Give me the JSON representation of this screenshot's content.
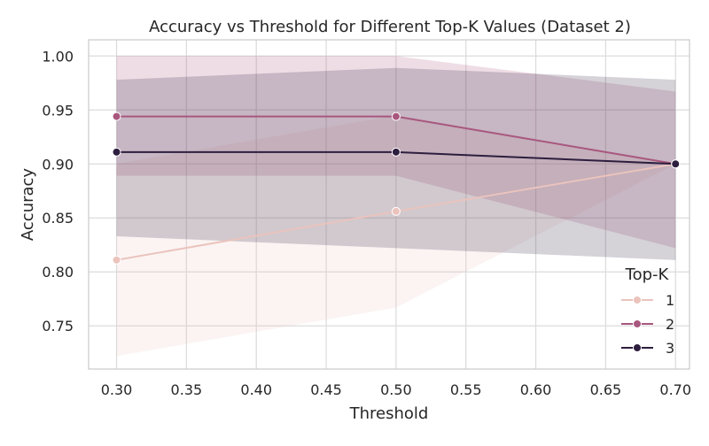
{
  "chart_data": {
    "type": "line",
    "title": "Accuracy vs Threshold for Different Top-K Values (Dataset 2)",
    "xlabel": "Threshold",
    "ylabel": "Accuracy",
    "xlim": [
      0.28,
      0.71
    ],
    "ylim": [
      0.71,
      1.015
    ],
    "x_ticks": [
      0.3,
      0.35,
      0.4,
      0.45,
      0.5,
      0.55,
      0.6,
      0.65,
      0.7
    ],
    "x_tick_labels": [
      "0.30",
      "0.35",
      "0.40",
      "0.45",
      "0.50",
      "0.55",
      "0.60",
      "0.65",
      "0.70"
    ],
    "y_ticks": [
      0.75,
      0.8,
      0.85,
      0.9,
      0.95,
      1.0
    ],
    "y_tick_labels": [
      "0.75",
      "0.80",
      "0.85",
      "0.90",
      "0.95",
      "1.00"
    ],
    "grid": true,
    "legend": {
      "title": "Top-K",
      "placement": "lower-right"
    },
    "x": [
      0.3,
      0.5,
      0.7
    ],
    "series": [
      {
        "name": "1",
        "color": "#ebc3bd",
        "values": [
          0.811,
          0.856,
          0.9
        ],
        "ci_lower": [
          0.722,
          0.767,
          0.9
        ],
        "ci_upper": [
          0.9,
          0.945,
          0.9
        ]
      },
      {
        "name": "2",
        "color": "#a8577e",
        "values": [
          0.944,
          0.944,
          0.9
        ],
        "ci_lower": [
          0.889,
          0.889,
          0.822
        ],
        "ci_upper": [
          1.0,
          1.0,
          0.967
        ]
      },
      {
        "name": "3",
        "color": "#2d1e3e",
        "values": [
          0.911,
          0.911,
          0.9
        ],
        "ci_lower": [
          0.833,
          0.822,
          0.811
        ],
        "ci_upper": [
          0.978,
          0.989,
          0.978
        ]
      }
    ]
  }
}
